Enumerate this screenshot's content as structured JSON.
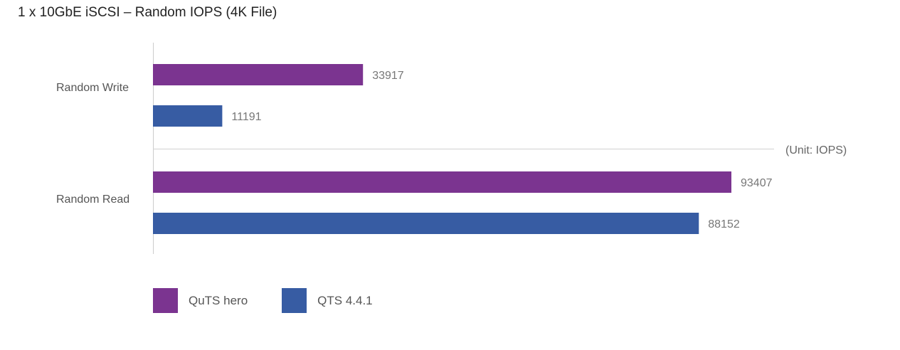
{
  "title": "1 x 10GbE iSCSI – Random IOPS (4K File)",
  "unit_note": "(Unit: IOPS)",
  "chart_data": {
    "type": "bar",
    "orientation": "horizontal",
    "title": "1 x 10GbE iSCSI – Random IOPS (4K File)",
    "xlabel": "",
    "ylabel": "",
    "unit": "(Unit: IOPS)",
    "categories": [
      "Random Write",
      "Random Read"
    ],
    "series": [
      {
        "name": "QuTS hero",
        "color": "#7b3490",
        "values": [
          33917,
          93407
        ]
      },
      {
        "name": "QTS 4.4.1",
        "color": "#375ca3",
        "values": [
          11191,
          88152
        ]
      }
    ],
    "xlim": [
      0,
      100000
    ],
    "grid": false,
    "legend_position": "bottom-left"
  },
  "legend": [
    {
      "label": "QuTS hero",
      "color": "#7b3490"
    },
    {
      "label": "QTS 4.4.1",
      "color": "#375ca3"
    }
  ]
}
